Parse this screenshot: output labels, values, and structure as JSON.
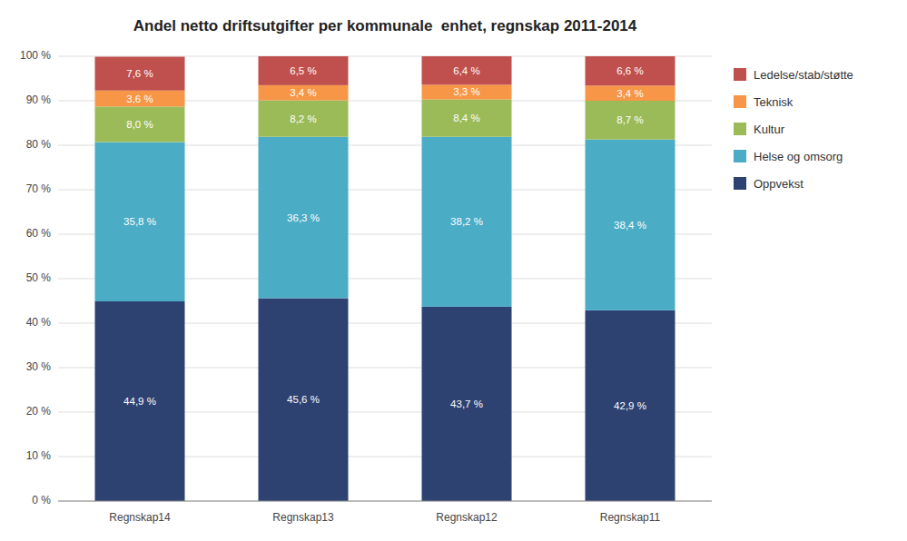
{
  "chart_data": {
    "type": "bar",
    "stacked": true,
    "title": "Andel netto driftsutgifter per kommunale  enhet, regnskap 2011-2014",
    "categories": [
      "Regnskap14",
      "Regnskap13",
      "Regnskap12",
      "Regnskap11"
    ],
    "series": [
      {
        "name": "Oppvekst",
        "color": "#2E4272",
        "values": [
          44.9,
          45.6,
          43.7,
          42.9
        ],
        "value_labels": [
          "44,9 %",
          "45,6 %",
          "43,7 %",
          "42,9 %"
        ]
      },
      {
        "name": "Helse og omsorg",
        "color": "#4BACC6",
        "values": [
          35.8,
          36.3,
          38.2,
          38.4
        ],
        "value_labels": [
          "35,8 %",
          "36,3 %",
          "38,2 %",
          "38,4 %"
        ]
      },
      {
        "name": "Kultur",
        "color": "#9BBB59",
        "values": [
          8.0,
          8.2,
          8.4,
          8.7
        ],
        "value_labels": [
          "8,0 %",
          "8,2 %",
          "8,4 %",
          "8,7 %"
        ]
      },
      {
        "name": "Teknisk",
        "color": "#F79646",
        "values": [
          3.6,
          3.4,
          3.3,
          3.4
        ],
        "value_labels": [
          "3,6 %",
          "3,4 %",
          "3,3 %",
          "3,4 %"
        ]
      },
      {
        "name": "Ledelse/stab/støtte",
        "color": "#C0504D",
        "values": [
          7.6,
          6.5,
          6.4,
          6.6
        ],
        "value_labels": [
          "7,6 %",
          "6,5 %",
          "6,4 %",
          "6,6 %"
        ]
      }
    ],
    "ylim": [
      0,
      100
    ],
    "yticks": [
      {
        "value": 0,
        "label": "0 %"
      },
      {
        "value": 10,
        "label": "10 %"
      },
      {
        "value": 20,
        "label": "20 %"
      },
      {
        "value": 30,
        "label": "30 %"
      },
      {
        "value": 40,
        "label": "40 %"
      },
      {
        "value": 50,
        "label": "50 %"
      },
      {
        "value": 60,
        "label": "60 %"
      },
      {
        "value": 70,
        "label": "70 %"
      },
      {
        "value": 80,
        "label": "80 %"
      },
      {
        "value": 90,
        "label": "90 %"
      },
      {
        "value": 100,
        "label": "100 %"
      }
    ],
    "grid": true,
    "legend": "right",
    "data_labels": true
  }
}
